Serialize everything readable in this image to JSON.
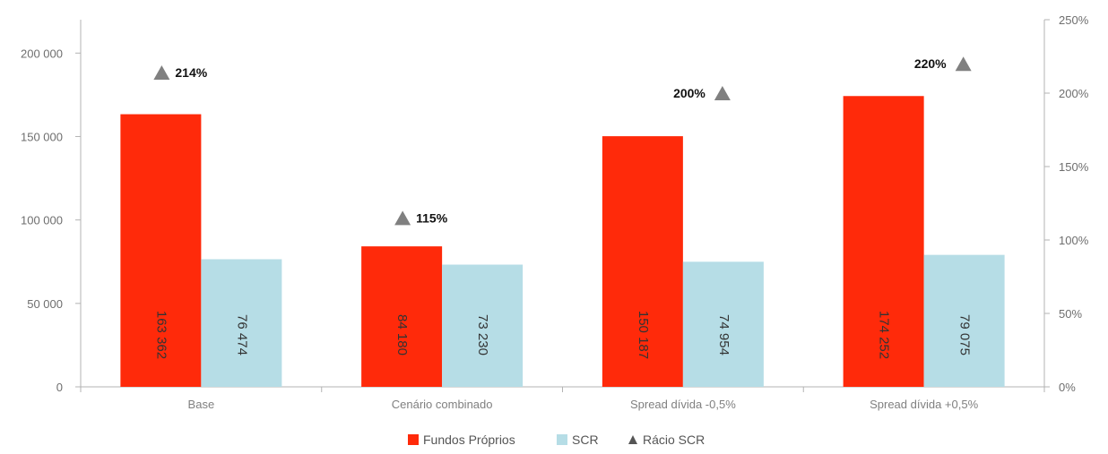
{
  "chart_data": {
    "type": "bar",
    "categories": [
      "Base",
      "Cenário combinado",
      "Spread dívida -0,5%",
      "Spread dívida +0,5%"
    ],
    "series": [
      {
        "name": "Fundos Próprios",
        "values": [
          163362,
          84180,
          150187,
          174252
        ],
        "labels": [
          "163 362",
          "84 180",
          "150 187",
          "174 252"
        ],
        "color": "#ff2a0a",
        "axis": "left"
      },
      {
        "name": "SCR",
        "values": [
          76474,
          73230,
          74954,
          79075
        ],
        "labels": [
          "76 474",
          "73 230",
          "74 954",
          "79 075"
        ],
        "color": "#b6dde6",
        "axis": "left"
      },
      {
        "name": "Rácio SCR",
        "type": "scatter",
        "marker": "triangle",
        "values": [
          214,
          115,
          200,
          220
        ],
        "labels": [
          "214%",
          "115%",
          "200%",
          "220%"
        ],
        "label_side": [
          "right",
          "right",
          "left",
          "left"
        ],
        "color": "#808080",
        "axis": "right"
      }
    ],
    "y_left": {
      "ylim": [
        0,
        220000
      ],
      "ticks": [
        0,
        50000,
        100000,
        150000,
        200000
      ],
      "tick_labels": [
        "0",
        "50 000",
        "100 000",
        "150 000",
        "200 000"
      ]
    },
    "y_right": {
      "ylim": [
        0,
        250
      ],
      "ticks": [
        0,
        50,
        100,
        150,
        200,
        250
      ],
      "tick_labels": [
        "0%",
        "50%",
        "100%",
        "150%",
        "200%",
        "250%"
      ]
    },
    "title": "",
    "xlabel": "",
    "ylabel": "",
    "grid": false,
    "legend_position": "bottom-center"
  }
}
